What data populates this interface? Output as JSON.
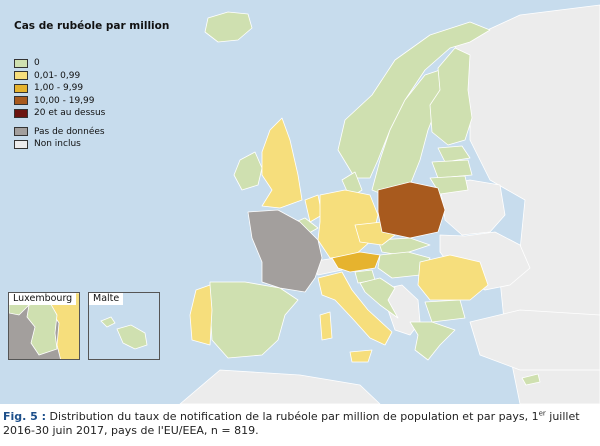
{
  "legend": {
    "title": "Cas de rubéole par million",
    "items": [
      {
        "label": "0",
        "color": "#cfe0b0"
      },
      {
        "label": "0,01- 0,99",
        "color": "#f6de7c"
      },
      {
        "label": "1,00 - 9,99",
        "color": "#e6b32e"
      },
      {
        "label": "10,00 - 19,99",
        "color": "#a85a1e"
      },
      {
        "label": "20 et au dessus",
        "color": "#6b1410"
      }
    ],
    "extra": [
      {
        "label": "Pas de données",
        "color": "#a39f9d"
      },
      {
        "label": "Non inclus",
        "color": "#ececec"
      }
    ]
  },
  "insets": {
    "luxembourg": "Luxembourg",
    "malte": "Malte"
  },
  "caption": {
    "fig_label": "Fig. 5 :",
    "text_before_sup": " Distribution du taux de notification de la rubéole par million de population et par pays, 1",
    "sup": "er",
    "text_after_sup": " juillet 2016-30 juin 2017, pays de l'EU/EEA, n = 819."
  },
  "colors": {
    "sea": "#c7dced",
    "zero": "#cfe0b0",
    "low": "#f6de7c",
    "mid": "#e6b32e",
    "high": "#a85a1e",
    "nodata": "#a39f9d",
    "notincluded": "#ececec"
  }
}
